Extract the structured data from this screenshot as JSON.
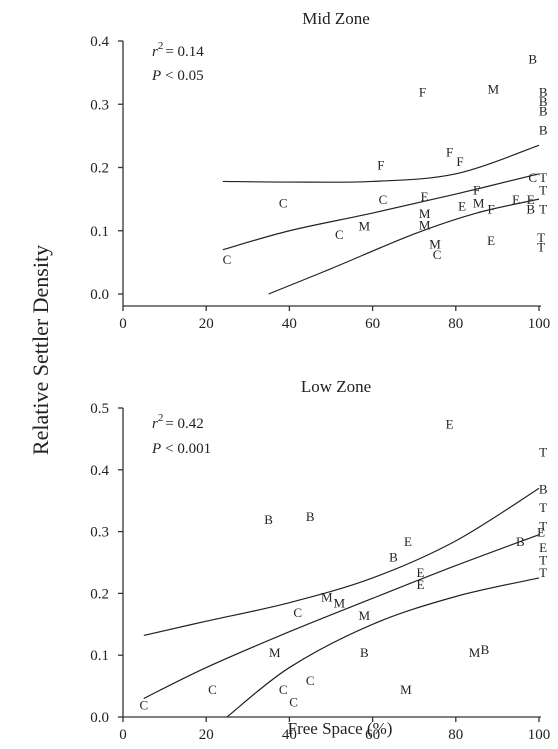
{
  "ylabel": "Relative Settler Density",
  "xlabel": "Free Space (%)",
  "chart_data": [
    {
      "type": "scatter",
      "title": "Mid Zone",
      "xlim": [
        0,
        100
      ],
      "ylim": [
        0,
        0.4
      ],
      "xticks": [
        "0",
        "20",
        "40",
        "60",
        "80",
        "100"
      ],
      "yticks": [
        "0.0",
        "0.1",
        "0.2",
        "0.3",
        "0.4"
      ],
      "stats": {
        "r2_prefix": "r",
        "r2_exp": "2",
        "r2_value": "= 0.14",
        "p_symbol": "P",
        "p_value": "< 0.05"
      },
      "points": [
        {
          "label": "C",
          "x": 25,
          "y": 0.055
        },
        {
          "label": "C",
          "x": 38.5,
          "y": 0.145
        },
        {
          "label": "C",
          "x": 52,
          "y": 0.095
        },
        {
          "label": "M",
          "x": 58,
          "y": 0.108
        },
        {
          "label": "C",
          "x": 62.5,
          "y": 0.15
        },
        {
          "label": "F",
          "x": 62,
          "y": 0.205
        },
        {
          "label": "F",
          "x": 72,
          "y": 0.32
        },
        {
          "label": "M",
          "x": 72.5,
          "y": 0.128
        },
        {
          "label": "M",
          "x": 72.5,
          "y": 0.11
        },
        {
          "label": "E",
          "x": 72.5,
          "y": 0.155
        },
        {
          "label": "M",
          "x": 75,
          "y": 0.08
        },
        {
          "label": "C",
          "x": 75.5,
          "y": 0.063
        },
        {
          "label": "F",
          "x": 78.5,
          "y": 0.225
        },
        {
          "label": "F",
          "x": 81,
          "y": 0.21
        },
        {
          "label": "E",
          "x": 81.5,
          "y": 0.14
        },
        {
          "label": "F",
          "x": 85,
          "y": 0.165
        },
        {
          "label": "M",
          "x": 85.5,
          "y": 0.145
        },
        {
          "label": "F",
          "x": 88.5,
          "y": 0.135
        },
        {
          "label": "E",
          "x": 88.5,
          "y": 0.085
        },
        {
          "label": "M",
          "x": 89,
          "y": 0.325
        },
        {
          "label": "E",
          "x": 94.5,
          "y": 0.15
        },
        {
          "label": "E",
          "x": 98,
          "y": 0.15
        },
        {
          "label": "B",
          "x": 98,
          "y": 0.135
        },
        {
          "label": "C",
          "x": 98.5,
          "y": 0.185
        },
        {
          "label": "B",
          "x": 98.5,
          "y": 0.372
        },
        {
          "label": "B",
          "x": 101,
          "y": 0.32
        },
        {
          "label": "B",
          "x": 101,
          "y": 0.305
        },
        {
          "label": "B",
          "x": 101,
          "y": 0.29
        },
        {
          "label": "B",
          "x": 101,
          "y": 0.26
        },
        {
          "label": "T",
          "x": 101,
          "y": 0.185
        },
        {
          "label": "T",
          "x": 101,
          "y": 0.165
        },
        {
          "label": "T",
          "x": 101,
          "y": 0.135
        },
        {
          "label": "T",
          "x": 100.5,
          "y": 0.09
        },
        {
          "label": "T",
          "x": 100.5,
          "y": 0.075
        }
      ],
      "fit_lines": [
        {
          "x": [
            24,
            40,
            60,
            80,
            100
          ],
          "y": [
            0.178,
            0.177,
            0.178,
            0.19,
            0.235
          ]
        },
        {
          "x": [
            24,
            40,
            60,
            80,
            100
          ],
          "y": [
            0.07,
            0.1,
            0.128,
            0.158,
            0.19
          ]
        },
        {
          "x": [
            35,
            50,
            70,
            85,
            100
          ],
          "y": [
            0.0,
            0.04,
            0.095,
            0.128,
            0.15
          ]
        }
      ]
    },
    {
      "type": "scatter",
      "title": "Low Zone",
      "xlim": [
        0,
        100
      ],
      "ylim": [
        0,
        0.5
      ],
      "xticks": [
        "0",
        "20",
        "40",
        "60",
        "80",
        "100"
      ],
      "yticks": [
        "0.0",
        "0.1",
        "0.2",
        "0.3",
        "0.4",
        "0.5"
      ],
      "stats": {
        "r2_prefix": "r",
        "r2_exp": "2",
        "r2_value": "= 0.42",
        "p_symbol": "P",
        "p_value": "< 0.001"
      },
      "points": [
        {
          "label": "C",
          "x": 5,
          "y": 0.02
        },
        {
          "label": "C",
          "x": 21.5,
          "y": 0.045
        },
        {
          "label": "M",
          "x": 36.5,
          "y": 0.105
        },
        {
          "label": "B",
          "x": 35,
          "y": 0.32
        },
        {
          "label": "B",
          "x": 45,
          "y": 0.325
        },
        {
          "label": "C",
          "x": 38.5,
          "y": 0.045
        },
        {
          "label": "C",
          "x": 41,
          "y": 0.025
        },
        {
          "label": "C",
          "x": 42,
          "y": 0.17
        },
        {
          "label": "C",
          "x": 45,
          "y": 0.06
        },
        {
          "label": "M",
          "x": 49,
          "y": 0.195
        },
        {
          "label": "M",
          "x": 52,
          "y": 0.185
        },
        {
          "label": "M",
          "x": 58,
          "y": 0.165
        },
        {
          "label": "B",
          "x": 58,
          "y": 0.105
        },
        {
          "label": "B",
          "x": 65,
          "y": 0.26
        },
        {
          "label": "E",
          "x": 68.5,
          "y": 0.285
        },
        {
          "label": "M",
          "x": 68,
          "y": 0.045
        },
        {
          "label": "E",
          "x": 71.5,
          "y": 0.235
        },
        {
          "label": "E",
          "x": 71.5,
          "y": 0.215
        },
        {
          "label": "E",
          "x": 78.5,
          "y": 0.475
        },
        {
          "label": "M",
          "x": 84.5,
          "y": 0.105
        },
        {
          "label": "B",
          "x": 87,
          "y": 0.11
        },
        {
          "label": "B",
          "x": 95.5,
          "y": 0.285
        },
        {
          "label": "T",
          "x": 101,
          "y": 0.43
        },
        {
          "label": "B",
          "x": 101,
          "y": 0.37
        },
        {
          "label": "T",
          "x": 101,
          "y": 0.34
        },
        {
          "label": "T",
          "x": 101,
          "y": 0.31
        },
        {
          "label": "E",
          "x": 100.5,
          "y": 0.3
        },
        {
          "label": "E",
          "x": 101,
          "y": 0.275
        },
        {
          "label": "T",
          "x": 101,
          "y": 0.255
        },
        {
          "label": "T",
          "x": 101,
          "y": 0.235
        }
      ],
      "fit_lines": [
        {
          "x": [
            5,
            20,
            40,
            60,
            80,
            100
          ],
          "y": [
            0.132,
            0.155,
            0.185,
            0.225,
            0.285,
            0.37
          ]
        },
        {
          "x": [
            5,
            20,
            40,
            60,
            80,
            100
          ],
          "y": [
            0.03,
            0.08,
            0.138,
            0.192,
            0.245,
            0.295
          ]
        },
        {
          "x": [
            25,
            40,
            60,
            80,
            100
          ],
          "y": [
            0.0,
            0.08,
            0.15,
            0.195,
            0.225
          ]
        }
      ]
    }
  ]
}
